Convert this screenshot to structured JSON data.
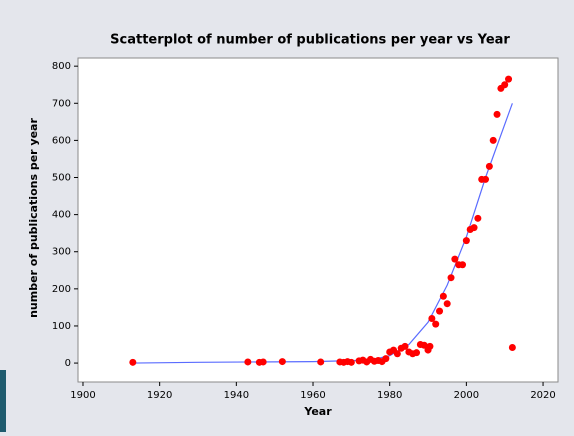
{
  "chart_data": {
    "type": "scatter",
    "title": "Scatterplot of number of publications per year vs Year",
    "x_label": "Year",
    "y_label": "number of publications per year",
    "xlim": [
      1898.7,
      2023.9
    ],
    "ylim": [
      -51,
      822
    ],
    "xticks": [
      1900,
      1920,
      1940,
      1960,
      1980,
      2000,
      2020
    ],
    "yticks": [
      0,
      100,
      200,
      300,
      400,
      500,
      600,
      700,
      800
    ],
    "color": "#ff0000",
    "x": [
      1913,
      1943,
      1946,
      1947,
      1952,
      1962,
      1967,
      1968,
      1969,
      1970,
      1972,
      1973,
      1974,
      1975,
      1976,
      1977,
      1978,
      1979,
      1980,
      1981,
      1982,
      1983,
      1984,
      1985,
      1986,
      1987,
      1988,
      1989,
      1990,
      1990.5,
      1991,
      1992,
      1993,
      1994,
      1995,
      1996,
      1997,
      1998,
      1999,
      2000,
      2001,
      2002,
      2003,
      2004,
      2005,
      2006,
      2007,
      2008,
      2009,
      2010,
      2011,
      2012
    ],
    "values": [
      2,
      3,
      2,
      3,
      4,
      3,
      3,
      2,
      4,
      2,
      6,
      8,
      3,
      10,
      5,
      7,
      4,
      12,
      30,
      35,
      25,
      40,
      45,
      30,
      25,
      28,
      50,
      48,
      35,
      45,
      120,
      105,
      140,
      180,
      160,
      230,
      280,
      265,
      265,
      330,
      360,
      365,
      390,
      495,
      495,
      530,
      600,
      670,
      740,
      750,
      765,
      42
    ],
    "fit": {
      "color": "#5a6cff",
      "x": [
        1913,
        1930,
        1960,
        1975,
        1980,
        1985,
        1990,
        1995,
        2000,
        2005,
        2012
      ],
      "y": [
        0,
        2,
        4,
        8,
        20,
        50,
        110,
        210,
        340,
        500,
        700
      ]
    }
  }
}
